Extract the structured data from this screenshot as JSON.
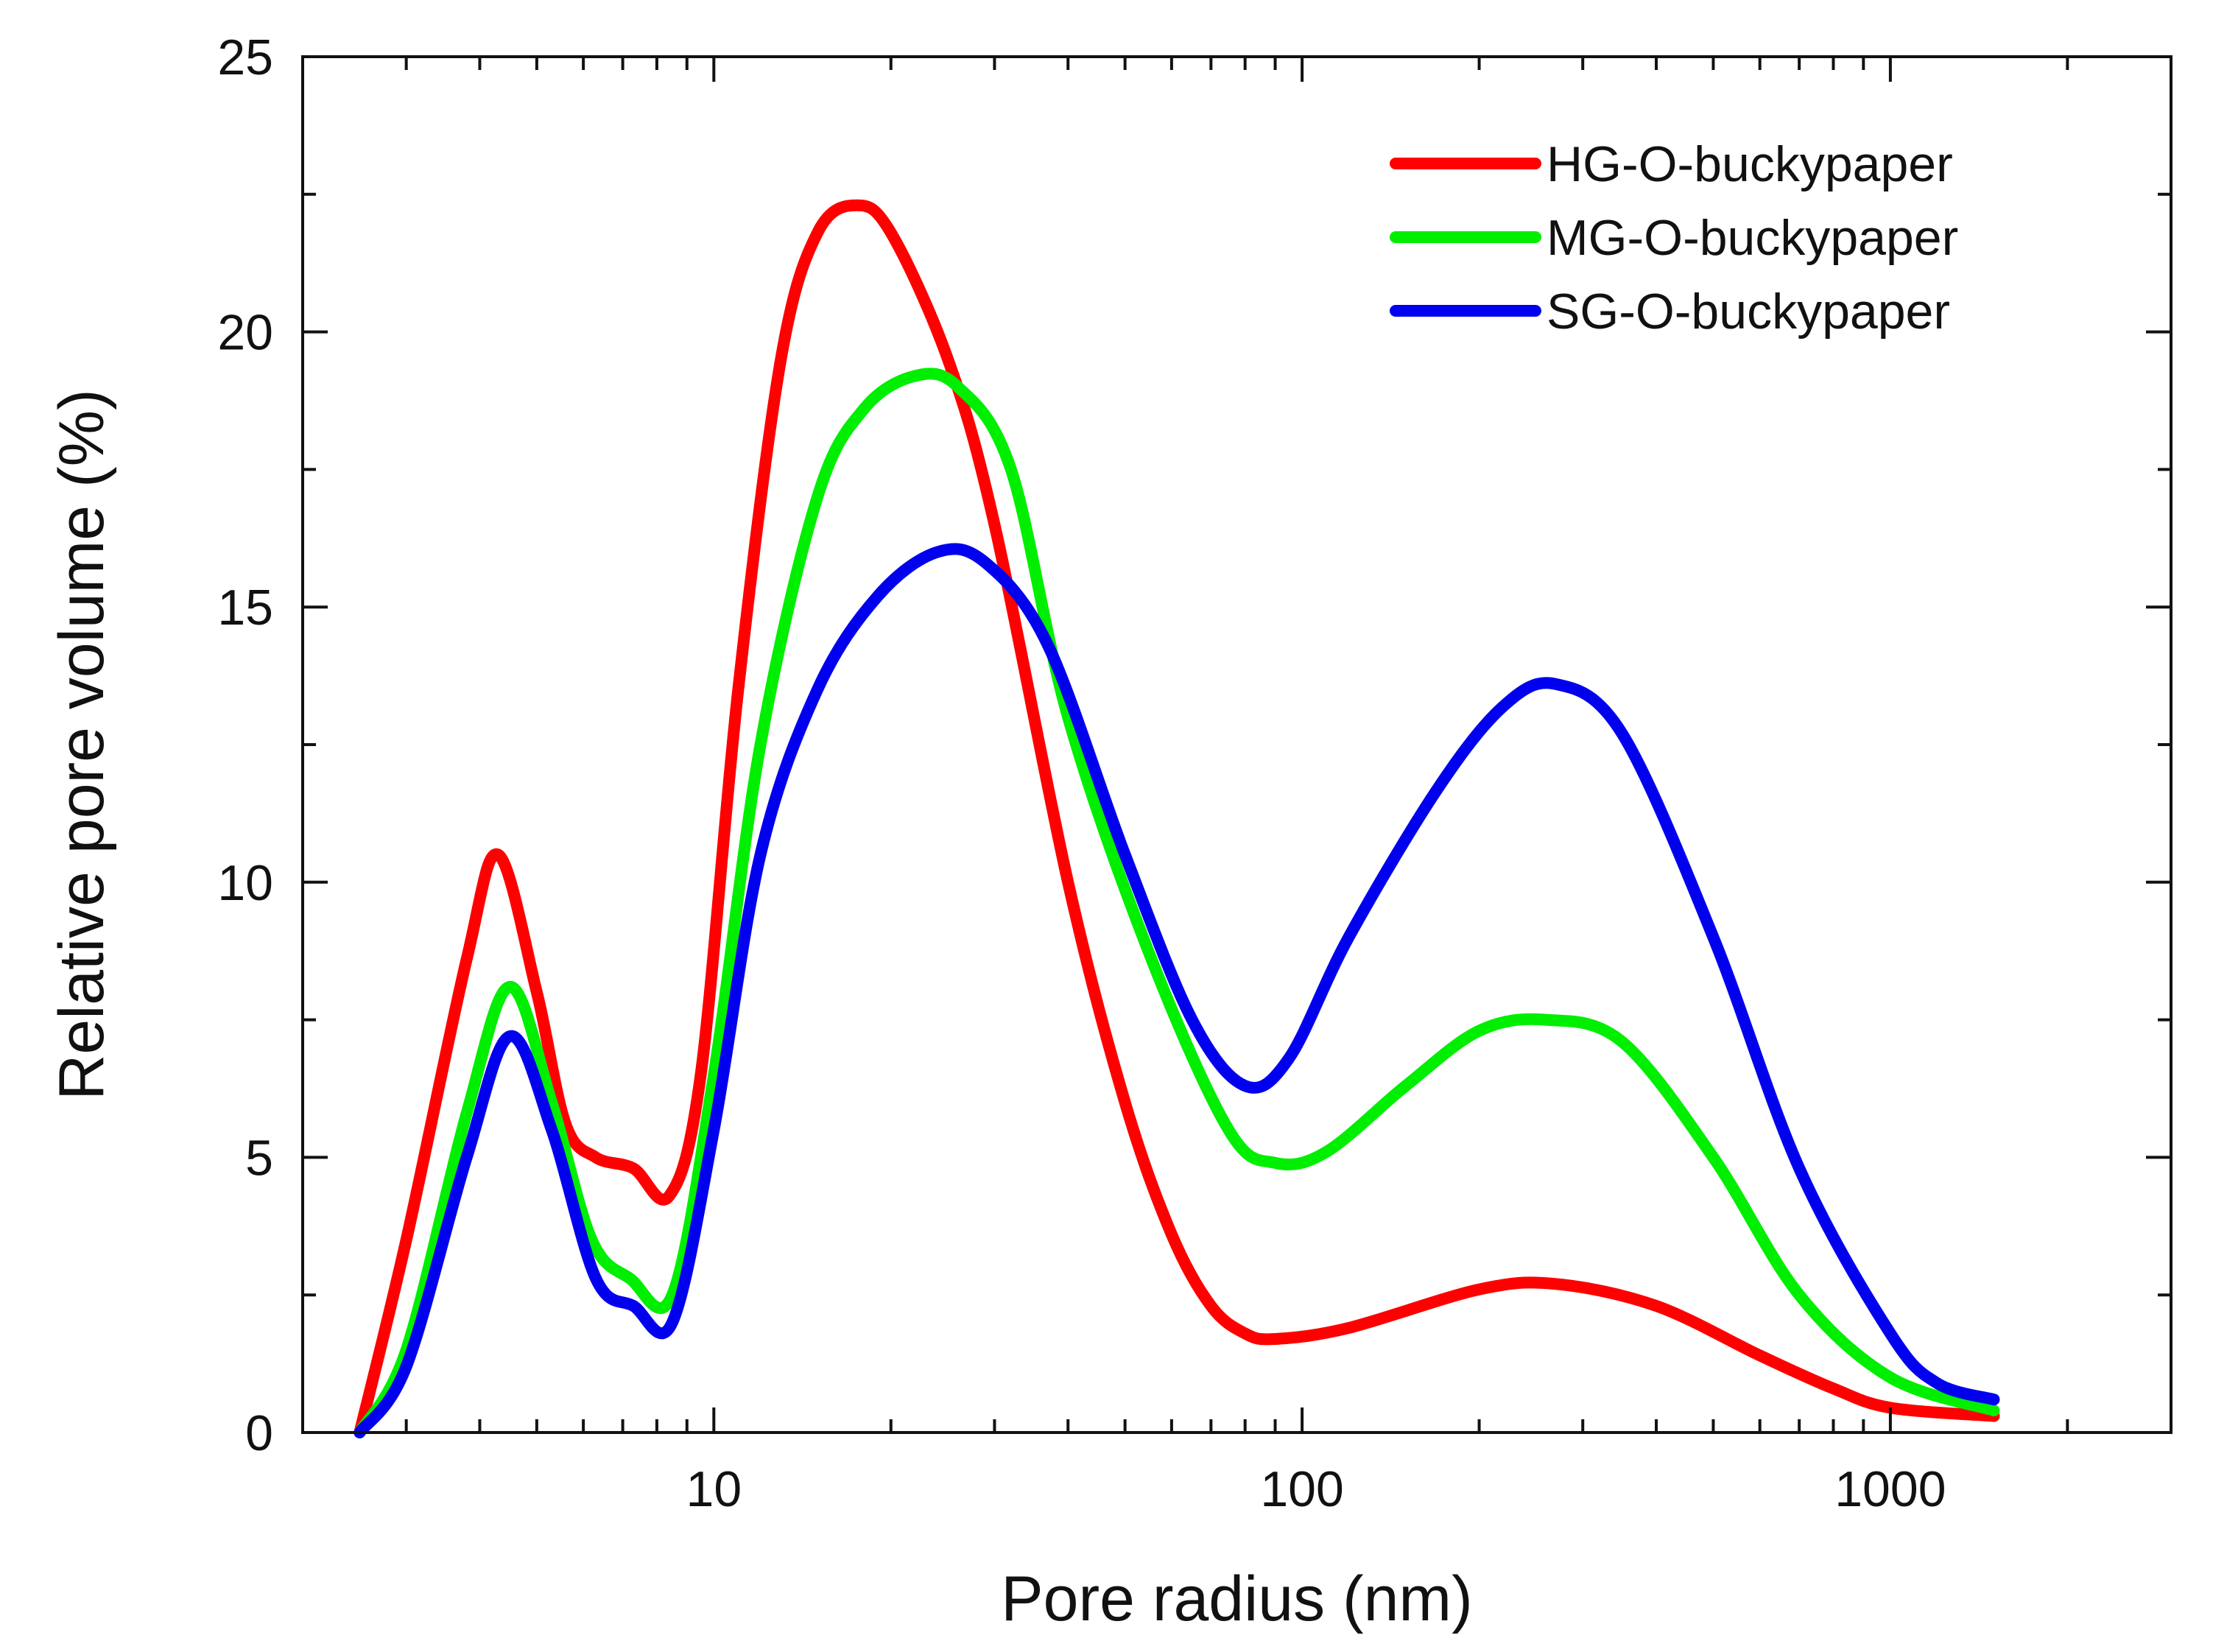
{
  "chart_data": {
    "type": "line",
    "title": "",
    "xlabel": "Pore radius (nm)",
    "ylabel": "Relative pore volume (%)",
    "xscale": "log",
    "xlim": [
      2.0,
      3000
    ],
    "ylim": [
      0,
      25
    ],
    "x_ticks": [
      10,
      100,
      1000
    ],
    "x_tick_labels": [
      "10",
      "100",
      "1000"
    ],
    "y_ticks": [
      0,
      5,
      10,
      15,
      20,
      25
    ],
    "y_tick_labels": [
      "0",
      "5",
      "10",
      "15",
      "20",
      "25"
    ],
    "grid": false,
    "legend_position": "top-right",
    "series": [
      {
        "name": "HG-O-buckypaper",
        "color": "#ff0000",
        "points": [
          [
            2.5,
            0
          ],
          [
            3.0,
            3.5
          ],
          [
            3.8,
            8.6
          ],
          [
            4.3,
            10.5
          ],
          [
            5.0,
            8.0
          ],
          [
            5.6,
            5.6
          ],
          [
            6.3,
            5.0
          ],
          [
            7.3,
            4.8
          ],
          [
            8.4,
            4.3
          ],
          [
            9.5,
            6.5
          ],
          [
            11.0,
            13.5
          ],
          [
            13.0,
            19.5
          ],
          [
            15.0,
            21.8
          ],
          [
            17.5,
            22.3
          ],
          [
            20.0,
            21.8
          ],
          [
            25.0,
            19.5
          ],
          [
            30.0,
            16.5
          ],
          [
            40.0,
            10.0
          ],
          [
            50.0,
            6.0
          ],
          [
            60.0,
            3.6
          ],
          [
            70.0,
            2.3
          ],
          [
            80.0,
            1.8
          ],
          [
            90.0,
            1.7
          ],
          [
            120.0,
            1.9
          ],
          [
            200.0,
            2.6
          ],
          [
            270.0,
            2.7
          ],
          [
            400.0,
            2.3
          ],
          [
            600.0,
            1.4
          ],
          [
            800.0,
            0.8
          ],
          [
            1000.0,
            0.45
          ],
          [
            1500.0,
            0.3
          ]
        ]
      },
      {
        "name": "MG-O-buckypaper",
        "color": "#00ee00",
        "points": [
          [
            2.5,
            0
          ],
          [
            3.0,
            1.5
          ],
          [
            3.8,
            5.8
          ],
          [
            4.5,
            8.1
          ],
          [
            5.3,
            6.0
          ],
          [
            6.2,
            3.5
          ],
          [
            7.2,
            2.8
          ],
          [
            8.5,
            2.5
          ],
          [
            10.0,
            6.5
          ],
          [
            12.0,
            12.5
          ],
          [
            15.0,
            17.0
          ],
          [
            18.0,
            18.6
          ],
          [
            22.0,
            19.2
          ],
          [
            26.0,
            19.0
          ],
          [
            32.0,
            17.5
          ],
          [
            40.0,
            13.0
          ],
          [
            55.0,
            8.7
          ],
          [
            75.0,
            5.5
          ],
          [
            90.0,
            4.9
          ],
          [
            110.0,
            5.1
          ],
          [
            150.0,
            6.3
          ],
          [
            200.0,
            7.3
          ],
          [
            260.0,
            7.5
          ],
          [
            350.0,
            7.1
          ],
          [
            500.0,
            5.0
          ],
          [
            700.0,
            2.5
          ],
          [
            1000.0,
            1.0
          ],
          [
            1500.0,
            0.4
          ]
        ]
      },
      {
        "name": "SG-O-buckypaper",
        "color": "#0000ee",
        "points": [
          [
            2.5,
            0
          ],
          [
            3.0,
            1.2
          ],
          [
            3.8,
            5.0
          ],
          [
            4.5,
            7.2
          ],
          [
            5.3,
            5.5
          ],
          [
            6.3,
            2.8
          ],
          [
            7.3,
            2.3
          ],
          [
            8.5,
            2.0
          ],
          [
            10.0,
            5.5
          ],
          [
            12.0,
            10.5
          ],
          [
            15.0,
            13.5
          ],
          [
            19.0,
            15.2
          ],
          [
            24.0,
            16.0
          ],
          [
            29.0,
            15.8
          ],
          [
            37.0,
            14.3
          ],
          [
            50.0,
            10.5
          ],
          [
            65.0,
            7.5
          ],
          [
            80.0,
            6.3
          ],
          [
            95.0,
            6.8
          ],
          [
            120.0,
            9.0
          ],
          [
            170.0,
            11.7
          ],
          [
            220.0,
            13.2
          ],
          [
            270.0,
            13.6
          ],
          [
            350.0,
            12.7
          ],
          [
            500.0,
            9.0
          ],
          [
            700.0,
            4.8
          ],
          [
            1000.0,
            1.8
          ],
          [
            1200.0,
            0.9
          ],
          [
            1500.0,
            0.6
          ]
        ]
      }
    ]
  }
}
